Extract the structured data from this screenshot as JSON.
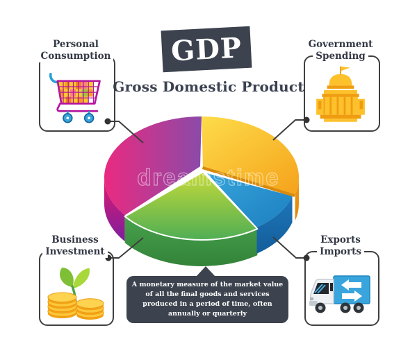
{
  "header": {
    "badge": "GDP",
    "subtitle": "Gross Domestic Product"
  },
  "description": "A monetary measure of the market value of all the final goods and services produced in a period of time, often annually or quarterly",
  "watermark": "dreamstime",
  "theme": {
    "panel_color": "#3c434e",
    "text_color": "#333945",
    "frame_border_color": "#3f3f3f",
    "connector_color": "#3d3d3d"
  },
  "callouts": [
    {
      "id": "personal-consumption",
      "label_lines": [
        "Personal",
        "Consumption"
      ],
      "icon": "shopping-cart-icon",
      "position": "top-left",
      "linked_slice": "Personal Consumption"
    },
    {
      "id": "government-spending",
      "label_lines": [
        "Government",
        "Spending"
      ],
      "icon": "government-building-icon",
      "position": "top-right",
      "linked_slice": "Government Spending"
    },
    {
      "id": "business-investment",
      "label_lines": [
        "Business",
        "Investment"
      ],
      "icon": "coins-sprout-icon",
      "position": "bottom-left",
      "linked_slice": "Business Investment"
    },
    {
      "id": "exports-imports",
      "label_lines": [
        "Exports",
        "Imports"
      ],
      "icon": "delivery-truck-icon",
      "position": "bottom-right",
      "linked_slice": "Exports Imports"
    }
  ],
  "chart_data": {
    "type": "pie",
    "style": "3d-exploded",
    "title": "GDP components",
    "legend_position": "corner-callouts",
    "note": "slice values are not labeled in the image; shares estimated from arc angles",
    "segments": [
      {
        "label": "Government Spending",
        "start_deg": 0,
        "end_deg": 106,
        "share_pct": 29.4,
        "top_colors": [
          "#fddc4a",
          "#f6a61e"
        ],
        "wall_colors": [
          "#f09c15",
          "#e18607"
        ]
      },
      {
        "label": "Exports Imports",
        "start_deg": 106,
        "end_deg": 145,
        "share_pct": 10.8,
        "top_colors": [
          "#36a4da",
          "#1d7fc0"
        ],
        "wall_colors": [
          "#1d76b8",
          "#145d9b"
        ]
      },
      {
        "label": "Business Investment",
        "start_deg": 145,
        "end_deg": 232,
        "share_pct": 24.2,
        "top_colors": [
          "#c6da3a",
          "#4fae54"
        ],
        "wall_colors": [
          "#47a24c",
          "#338339"
        ]
      },
      {
        "label": "Personal Consumption",
        "start_deg": 232,
        "end_deg": 360,
        "share_pct": 35.6,
        "top_colors": [
          "#ea2a80",
          "#8b4aa8"
        ],
        "wall_colors": [
          "#e01a6e",
          "#7d1f9e"
        ]
      }
    ]
  }
}
